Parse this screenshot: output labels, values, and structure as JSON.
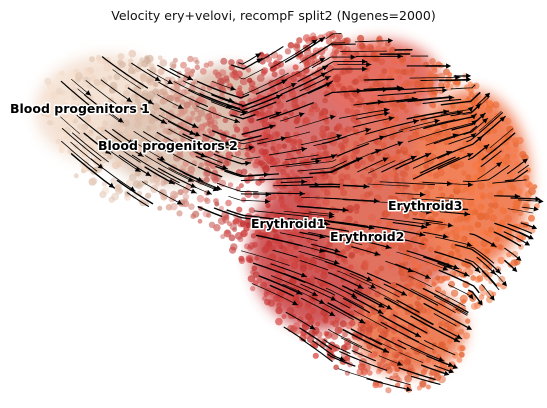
{
  "title": "Velocity ery+velovi, recompF split2 (Ngenes=2000)",
  "clusters": [
    {
      "name": "Blood progenitors 1"
    },
    {
      "name": "Blood progenitors 2"
    },
    {
      "name": "Erythroid1"
    },
    {
      "name": "Erythroid2"
    },
    {
      "name": "Erythroid3"
    }
  ],
  "colors": {
    "blood_progenitors_1": "#f2dccb",
    "blood_progenitors_2": "#d9b8a4",
    "erythroid1": "#c8393a",
    "erythroid2": "#d95540",
    "erythroid3": "#f0703a",
    "streamline": "#000000"
  }
}
